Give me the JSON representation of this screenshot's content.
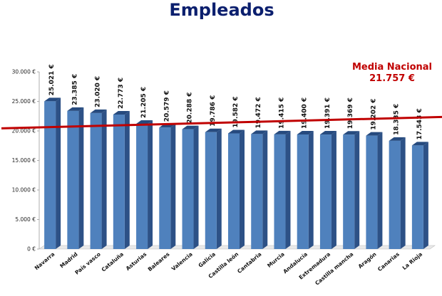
{
  "chart_data": {
    "type": "bar",
    "title": "Empleados",
    "categories": [
      "Navarra",
      "Madrid",
      "País vasco",
      "Cataluña",
      "Asturias",
      "Baleares",
      "Valencia",
      "Galicia",
      "Castilla león",
      "Cantabria",
      "Murcia",
      "Andalucía",
      "Extremadura",
      "Castilla mancha",
      "Aragón",
      "Canarias",
      "La Rioja"
    ],
    "values": [
      25021,
      23385,
      23020,
      22773,
      21205,
      20579,
      20288,
      19786,
      19582,
      19472,
      19415,
      19400,
      19391,
      19369,
      19202,
      18335,
      17543
    ],
    "value_labels": [
      "25.021 €",
      "23.385 €",
      "23.020 €",
      "22.773 €",
      "21.205 €",
      "20.579 €",
      "20.288 €",
      "19.786 €",
      "19.582 €",
      "19.472 €",
      "19.415 €",
      "19.400 €",
      "19.391 €",
      "19.369 €",
      "19.202 €",
      "18.335 €",
      "17.543 €"
    ],
    "yticks": [
      0,
      5000,
      10000,
      15000,
      20000,
      25000,
      30000
    ],
    "ytick_labels": [
      "0 €",
      "5.000 €",
      "10.000 €",
      "15.000 €",
      "20.000 €",
      "25.000 €",
      "30.000 €"
    ],
    "ylim": [
      0,
      30000
    ],
    "grid": false,
    "reference_line": {
      "name": "Media Nacional",
      "value_label": "21.757 €",
      "value": 21757,
      "color": "#c00000"
    },
    "bar_color": "#4f81bd"
  }
}
